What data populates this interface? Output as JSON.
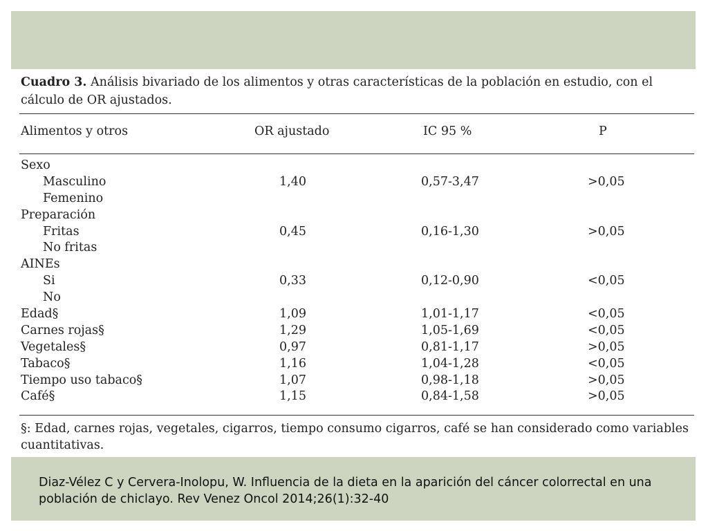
{
  "caption": {
    "label": "Cuadro 3.",
    "text": " Análisis bivariado de los alimentos y otras características de la población en estudio, con el cálculo de OR ajustados."
  },
  "table": {
    "headers": [
      "Alimentos y otros",
      "OR ajustado",
      "IC 95 %",
      "P"
    ],
    "rows": [
      {
        "label": "Sexo",
        "indent": false,
        "or": "",
        "ic": "",
        "p": ""
      },
      {
        "label": "Masculino",
        "indent": true,
        "or": "1,40",
        "ic": "0,57-3,47",
        "p": ">0,05"
      },
      {
        "label": "Femenino",
        "indent": true,
        "or": "",
        "ic": "",
        "p": ""
      },
      {
        "label": "Preparación",
        "indent": false,
        "or": "",
        "ic": "",
        "p": ""
      },
      {
        "label": "Fritas",
        "indent": true,
        "or": "0,45",
        "ic": "0,16-1,30",
        "p": ">0,05"
      },
      {
        "label": "No fritas",
        "indent": true,
        "or": "",
        "ic": "",
        "p": ""
      },
      {
        "label": "AINEs",
        "indent": false,
        "or": "",
        "ic": "",
        "p": ""
      },
      {
        "label": "Si",
        "indent": true,
        "or": "0,33",
        "ic": "0,12-0,90",
        "p": "<0,05"
      },
      {
        "label": "No",
        "indent": true,
        "or": "",
        "ic": "",
        "p": ""
      },
      {
        "label": "Edad§",
        "indent": false,
        "or": "1,09",
        "ic": "1,01-1,17",
        "p": "<0,05"
      },
      {
        "label": "Carnes rojas§",
        "indent": false,
        "or": "1,29",
        "ic": "1,05-1,69",
        "p": "<0,05"
      },
      {
        "label": "Vegetales§",
        "indent": false,
        "or": "0,97",
        "ic": "0,81-1,17",
        "p": ">0,05"
      },
      {
        "label": "Tabaco§",
        "indent": false,
        "or": "1,16",
        "ic": "1,04-1,28",
        "p": "<0,05"
      },
      {
        "label": "Tiempo uso tabaco§",
        "indent": false,
        "or": "1,07",
        "ic": "0,98-1,18",
        "p": ">0,05"
      },
      {
        "label": "Café§",
        "indent": false,
        "or": "1,15",
        "ic": "0,84-1,58",
        "p": ">0,05"
      }
    ]
  },
  "footnote": "§: Edad, carnes rojas, vegetales, cigarros, tiempo consumo cigarros, café se han considerado como variables cuantitativas.",
  "citation": "Diaz-Vélez C y Cervera-Inolopu, W. Influencia de la dieta en la aparición del cáncer colorrectal en una población de chiclayo. Rev Venez Oncol 2014;26(1):32-40",
  "colors": {
    "band": "#cdd5c0",
    "text": "#222222"
  }
}
